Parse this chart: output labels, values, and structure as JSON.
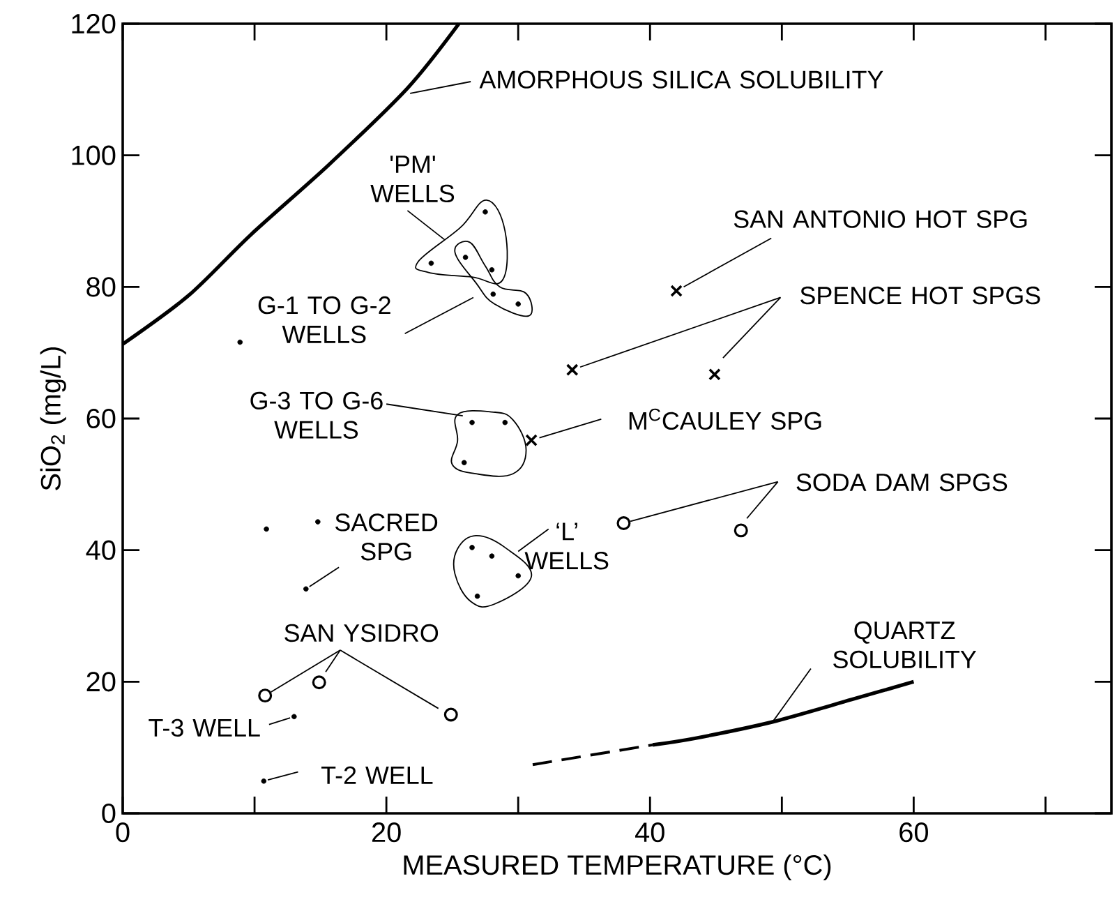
{
  "chart_data": {
    "type": "scatter",
    "xlabel": "MEASURED TEMPERATURE (°C)",
    "ylabel": "SiO$_{2}$ (mg/L)",
    "xlim": [
      0,
      75
    ],
    "ylim": [
      0,
      120
    ],
    "xticks": [
      0,
      {
        "value": 10,
        "label": null
      },
      20,
      {
        "value": 30,
        "label": null
      },
      40,
      {
        "value": 50,
        "label": null
      },
      60,
      {
        "value": 70,
        "label": null
      }
    ],
    "yticks": [
      0,
      20,
      40,
      60,
      80,
      100,
      120
    ],
    "series": [
      {
        "type": "line",
        "color": "#000000",
        "line_style": "solid",
        "x": [
          0,
          5,
          9.7,
          15.6,
          21.6,
          25.5
        ],
        "values": [
          71.3,
          78.7,
          87.9,
          98.5,
          110.2,
          120
        ]
      },
      {
        "type": "line",
        "color": "#000000",
        "line_style": "dashed",
        "x": [
          31.1,
          40.2
        ],
        "values": [
          7.4,
          10.4
        ]
      },
      {
        "type": "line",
        "color": "#000000",
        "line_style": "solid",
        "x": [
          40.2,
          43.4,
          49.3,
          55.3,
          60
        ],
        "values": [
          10.4,
          11.4,
          13.9,
          17.3,
          20
        ]
      },
      {
        "type": "scatter",
        "color": "#000000",
        "marker": "dot",
        "x": [
          27.5,
          23.4,
          28.0,
          26.0,
          28.1,
          30.0,
          8.9,
          26.5,
          29.0,
          25.9,
          10.9,
          14.8,
          13.9,
          26.5,
          28.0,
          30.0,
          26.9,
          13.0,
          10.7
        ],
        "values": [
          91.4,
          83.6,
          82.6,
          84.5,
          78.9,
          77.4,
          71.6,
          59.4,
          59.4,
          53.3,
          43.2,
          44.3,
          34.1,
          40.4,
          39.1,
          36.1,
          33.0,
          14.7,
          4.9
        ]
      },
      {
        "type": "scatter",
        "color": "#000000",
        "marker": "circle",
        "x": [
          10.8,
          14.9,
          24.9,
          38.0,
          46.9
        ],
        "values": [
          17.9,
          19.9,
          15.0,
          44.1,
          43.0
        ]
      },
      {
        "type": "scatter",
        "color": "#000000",
        "marker": "cross",
        "x": [
          42.0,
          34.1,
          44.9,
          31.0
        ],
        "values": [
          79.4,
          67.4,
          66.7,
          56.7
        ]
      }
    ],
    "annotations": [
      {
        "text": "AMORPHOUS SILICA SOLUBILITY",
        "x": 21.8,
        "y": 109.4
      },
      "'PM' WELLS",
      "G-1 TO G-2 WELLS",
      "G-3 TO G-6 WELLS",
      {
        "text": "SACRED SPG",
        "x": 13.9,
        "y": 34.1
      },
      "‘L’ WELLS",
      {
        "text": "SAN YSIDRO",
        "x": 10.8,
        "y": 17.9
      },
      {
        "text": "T-3 WELL",
        "x": 13.0,
        "y": 14.7
      },
      {
        "text": "T-2 WELL",
        "x": 10.7,
        "y": 4.9
      },
      {
        "text": "SAN ANTONIO HOT SPG",
        "x": 42.0,
        "y": 79.4
      },
      {
        "text": "SPENCE HOT SPGS",
        "x": 34.1,
        "y": 67.4
      },
      {
        "text": "M$^{C}$CAULEY SPG",
        "x": 31.0,
        "y": 56.7
      },
      {
        "text": "SODA DAM SPGS",
        "x": 38.0,
        "y": 44.1
      },
      {
        "text": "QUARTZ SOLUBILITY",
        "x": 49.3,
        "y": 13.9
      }
    ]
  }
}
